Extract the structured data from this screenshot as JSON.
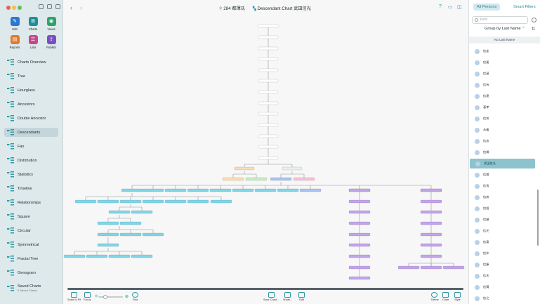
{
  "window": {
    "title_count": "284 都澤氏",
    "chart_title": "Descendant Chart 武田信光"
  },
  "tools": [
    {
      "label": "Edit",
      "icon": "pencil-icon",
      "color": "#2f76d2",
      "glyph": "✎"
    },
    {
      "label": "Charts",
      "icon": "charts-icon",
      "color": "#1d8f97",
      "glyph": "⊞"
    },
    {
      "label": "Views",
      "icon": "eye-icon",
      "color": "#2fa36a",
      "glyph": "◉"
    },
    {
      "label": "Reports",
      "icon": "reports-icon",
      "color": "#e07a2f",
      "glyph": "▤"
    },
    {
      "label": "Lists",
      "icon": "lists-icon",
      "color": "#c5478c",
      "glyph": "☰"
    },
    {
      "label": "Publish",
      "icon": "publish-icon",
      "color": "#7a4fc4",
      "glyph": "⇪"
    }
  ],
  "nav": [
    {
      "label": "Charts Overview",
      "icon": "charts-overview-icon"
    },
    {
      "label": "Tree",
      "icon": "tree-icon"
    },
    {
      "label": "Hourglass",
      "icon": "hourglass-icon"
    },
    {
      "label": "Ancestors",
      "icon": "ancestors-icon"
    },
    {
      "label": "Double Ancestor",
      "icon": "double-ancestor-icon"
    },
    {
      "label": "Descendants",
      "icon": "descendants-icon",
      "active": true
    },
    {
      "label": "Fan",
      "icon": "fan-icon"
    },
    {
      "label": "Distribution",
      "icon": "distribution-icon"
    },
    {
      "label": "Statistics",
      "icon": "statistics-icon"
    },
    {
      "label": "Timeline",
      "icon": "timeline-icon"
    },
    {
      "label": "Relationships",
      "icon": "relationships-icon"
    },
    {
      "label": "Square",
      "icon": "square-icon"
    },
    {
      "label": "Circular",
      "icon": "circular-icon"
    },
    {
      "label": "Symmetrical",
      "icon": "symmetrical-icon"
    },
    {
      "label": "Fractal Tree",
      "icon": "fractal-tree-icon"
    },
    {
      "label": "Genogram",
      "icon": "genogram-icon"
    },
    {
      "label": "Saved Charts",
      "sub": "0 Saved Charts",
      "icon": "saved-charts-icon"
    }
  ],
  "bottom": {
    "scale_to_fit": "Scale to Fit",
    "focus": "Focus",
    "find": "Find",
    "save_chart": "Save Chart...",
    "share": "Share...",
    "edit": "Edit",
    "theme": "Theme",
    "chart": "Chart",
    "style": "Style"
  },
  "panel": {
    "tab_all": "All Persons",
    "tab_smart": "Smart Filters",
    "find_placeholder": "Find",
    "group_by": "Group by Last Name",
    "section": "No Last Name",
    "persons": [
      "信定",
      "信義",
      "信基",
      "信有",
      "信達",
      "基孝",
      "信和",
      "永義",
      "信忠",
      "信綱",
      "武田信光",
      "信綱",
      "信長",
      "信房",
      "信経",
      "信頼",
      "信光",
      "信泰",
      "信仲",
      "信康",
      "信氏",
      "信賢",
      "信之"
    ],
    "selected_index": 10
  },
  "colors": {
    "accent": "#2a9aa7",
    "selected_row": "#8cc3cc",
    "node_cyan": "#7fd6ea",
    "node_blue": "#a9c3f2",
    "node_purple": "#c3a3ec",
    "node_green": "#c6ecc2",
    "node_pink": "#f5c2d6",
    "node_peach": "#f9dcb0"
  }
}
